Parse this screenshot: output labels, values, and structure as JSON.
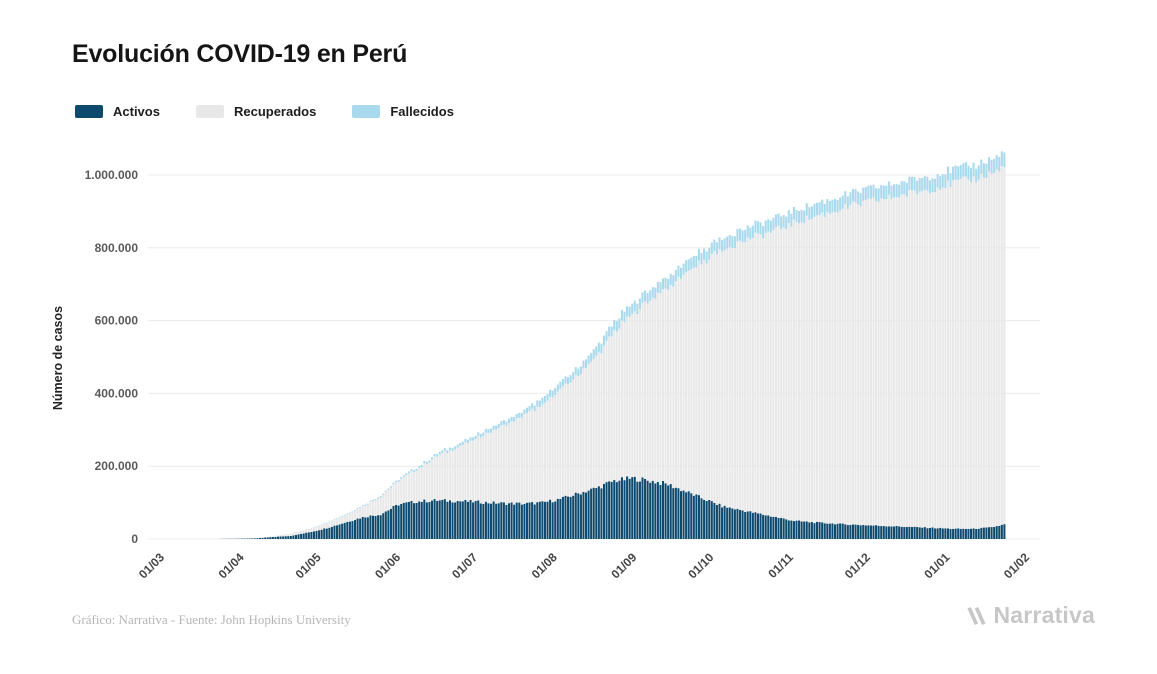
{
  "title": "Evolución COVID-19 en Perú",
  "legend": [
    {
      "label": "Activos",
      "color": "#0e4a6e"
    },
    {
      "label": "Recuperados",
      "color": "#e8e8e8"
    },
    {
      "label": "Fallecidos",
      "color": "#a9d9ed"
    }
  ],
  "footer": {
    "credit": "Gráfico: Narrativa - Fuente: John Hopkins University",
    "brand": "Narrativa"
  },
  "chart_data": {
    "type": "bar",
    "stacked": true,
    "title": "Evolución COVID-19 en Perú",
    "xlabel": "",
    "ylabel": "Número de casos",
    "ylim": [
      0,
      1100000
    ],
    "grid": "horizontal",
    "legend_position": "top-left",
    "yticks": [
      0,
      200000,
      400000,
      600000,
      800000,
      1000000
    ],
    "ytick_labels": [
      "0",
      "200.000",
      "400.000",
      "600.000",
      "800.000",
      "1.000.000"
    ],
    "xtick_labels": [
      "01/03",
      "01/04",
      "01/05",
      "01/06",
      "01/07",
      "01/08",
      "01/09",
      "01/10",
      "01/11",
      "01/12",
      "01/01",
      "01/02"
    ],
    "xtick_day_index": [
      0,
      31,
      61,
      92,
      122,
      153,
      184,
      214,
      245,
      275,
      306,
      337
    ],
    "sample_dates": [
      "01/03",
      "08/03",
      "15/03",
      "22/03",
      "29/03",
      "05/04",
      "12/04",
      "19/04",
      "26/04",
      "03/05",
      "10/05",
      "17/05",
      "24/05",
      "31/05",
      "07/06",
      "14/06",
      "21/06",
      "28/06",
      "05/07",
      "12/07",
      "19/07",
      "26/07",
      "02/08",
      "09/08",
      "16/08",
      "23/08",
      "30/08",
      "06/09",
      "13/09",
      "20/09",
      "27/09",
      "04/10",
      "11/10",
      "18/10",
      "25/10",
      "01/11",
      "08/11",
      "15/11",
      "22/11",
      "29/11",
      "06/12",
      "13/12",
      "20/12",
      "27/12",
      "03/01",
      "10/01",
      "17/01",
      "22/01"
    ],
    "sample_day_index": [
      0,
      7,
      14,
      21,
      28,
      35,
      42,
      49,
      56,
      63,
      70,
      77,
      84,
      91,
      98,
      105,
      112,
      119,
      126,
      133,
      140,
      147,
      154,
      161,
      168,
      175,
      182,
      189,
      196,
      203,
      210,
      217,
      224,
      231,
      238,
      245,
      252,
      259,
      266,
      273,
      280,
      287,
      294,
      301,
      308,
      315,
      322,
      327
    ],
    "series": [
      {
        "name": "Activos",
        "color": "#0e4a6e",
        "values": [
          1,
          6,
          42,
          354,
          770,
          1690,
          5700,
          8600,
          18200,
          30000,
          45000,
          60000,
          68000,
          95000,
          103000,
          106000,
          105000,
          103000,
          100000,
          98000,
          97000,
          100000,
          110000,
          125000,
          140000,
          160000,
          167000,
          160000,
          150000,
          130000,
          110000,
          90000,
          80000,
          70000,
          60000,
          50000,
          46000,
          43000,
          40000,
          38000,
          36000,
          34000,
          32000,
          30000,
          28000,
          28000,
          32000,
          40000
        ]
      },
      {
        "name": "Recuperados",
        "color": "#e8e8e8",
        "values": [
          0,
          0,
          1,
          4,
          48,
          508,
          1626,
          6628,
          8617,
          14642,
          20418,
          29625,
          48503,
          64970,
          88050,
          117048,
          141891,
          163854,
          192129,
          216377,
          243403,
          266568,
          299236,
          325168,
          359728,
          406873,
          451378,
          494015,
          542239,
          601496,
          652547,
          705427,
          736066,
          761847,
          789083,
          818027,
          836720,
          854544,
          872532,
          886489,
          898665,
          910399,
          922660,
          935984,
          951369,
          960410,
          972690,
          980700
        ]
      },
      {
        "name": "Fallecidos",
        "color": "#a9d9ed",
        "values": [
          0,
          0,
          0,
          5,
          34,
          83,
          193,
          400,
          700,
          1286,
          1889,
          2648,
          3456,
          4506,
          5465,
          6688,
          8045,
          9135,
          10589,
          11870,
          13187,
          18229,
          19614,
          20844,
          26075,
          27453,
          28788,
          29687,
          30593,
          31369,
          32037,
          32742,
          33305,
          33702,
          34033,
          34476,
          34783,
          35106,
          35549,
          35879,
          36195,
          36544,
          36858,
          37218,
          37830,
          38280,
          38770,
          39300
        ]
      }
    ]
  }
}
